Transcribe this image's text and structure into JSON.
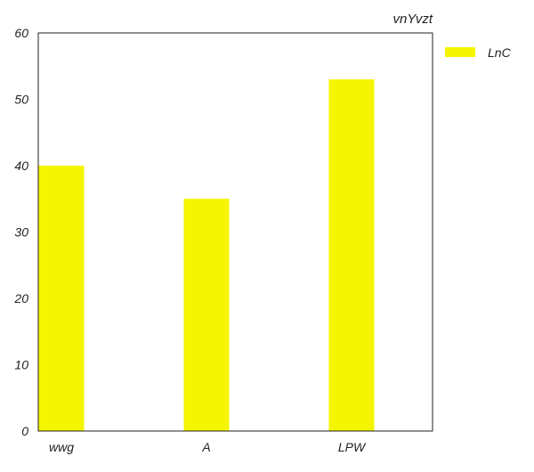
{
  "chart_data": {
    "type": "bar",
    "title": "vnYvzt",
    "xlabel": "",
    "ylabel": "",
    "categories": [
      "wwg",
      "A",
      "LPW"
    ],
    "series": [
      {
        "name": "LnC",
        "values": [
          40,
          35,
          53
        ],
        "color": "#f5f500"
      }
    ],
    "ylim": [
      0,
      60
    ],
    "yticks": [
      0,
      10,
      20,
      30,
      40,
      50,
      60
    ],
    "grid": false,
    "legend": "outside-top-right"
  }
}
